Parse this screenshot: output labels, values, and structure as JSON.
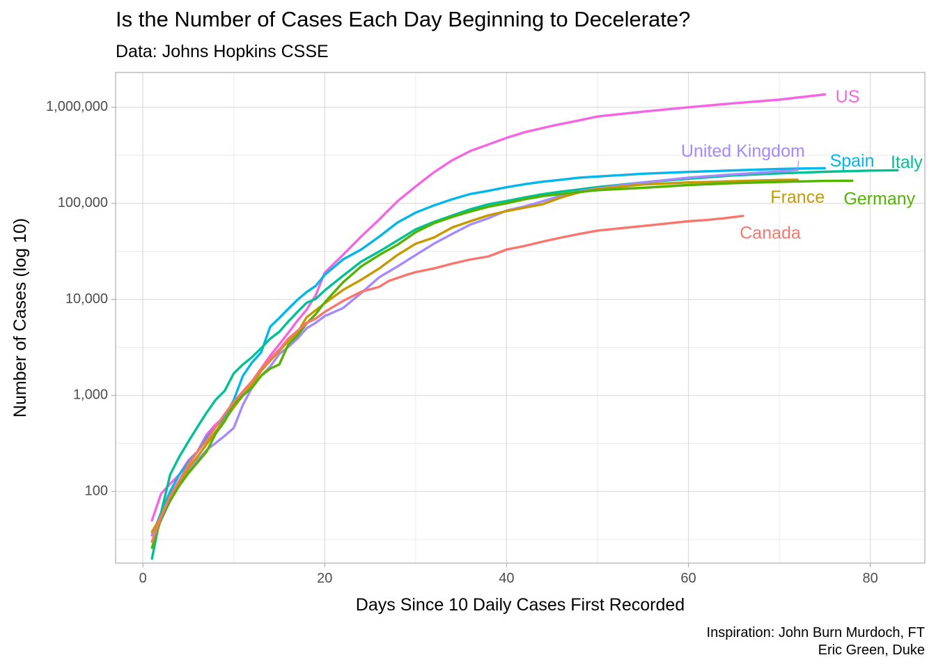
{
  "chart_data": {
    "type": "line",
    "title": "Is the Number of Cases Each Day Beginning to Decelerate?",
    "subtitle": "Data: Johns Hopkins CSSE",
    "xlabel": "Days Since 10 Daily Cases First Recorded",
    "ylabel": "Number of Cases (log 10)",
    "caption": [
      "Inspiration: John Burn Murdoch, FT",
      "Eric Green, Duke"
    ],
    "y_scale": "log10",
    "xlim": [
      -3,
      86
    ],
    "ylim": [
      18,
      2300000
    ],
    "x_ticks": [
      0,
      20,
      40,
      60,
      80
    ],
    "x_tick_labels": [
      "0",
      "20",
      "40",
      "60",
      "80"
    ],
    "y_ticks": [
      100,
      1000,
      10000,
      100000,
      1000000
    ],
    "y_tick_labels": [
      "100",
      "1,000",
      "10,000",
      "100,000",
      "1,000,000"
    ],
    "grid": true,
    "legend": "none (direct labels)",
    "series": [
      {
        "name": "US",
        "color": "#F564E3",
        "points": [
          [
            1,
            50
          ],
          [
            2,
            95
          ],
          [
            3,
            120
          ],
          [
            4,
            150
          ],
          [
            5,
            210
          ],
          [
            6,
            260
          ],
          [
            7,
            390
          ],
          [
            8,
            500
          ],
          [
            9,
            600
          ],
          [
            10,
            800
          ],
          [
            11,
            1100
          ],
          [
            12,
            1400
          ],
          [
            13,
            1900
          ],
          [
            14,
            2600
          ],
          [
            15,
            3400
          ],
          [
            16,
            4500
          ],
          [
            17,
            6000
          ],
          [
            18,
            7800
          ],
          [
            19,
            11000
          ],
          [
            20,
            19000
          ],
          [
            22,
            29000
          ],
          [
            24,
            45000
          ],
          [
            26,
            68000
          ],
          [
            28,
            105000
          ],
          [
            30,
            150000
          ],
          [
            32,
            210000
          ],
          [
            34,
            280000
          ],
          [
            36,
            350000
          ],
          [
            38,
            410000
          ],
          [
            40,
            480000
          ],
          [
            42,
            550000
          ],
          [
            45,
            640000
          ],
          [
            48,
            730000
          ],
          [
            50,
            800000
          ],
          [
            55,
            900000
          ],
          [
            60,
            1000000
          ],
          [
            65,
            1100000
          ],
          [
            70,
            1200000
          ],
          [
            75,
            1360000
          ]
        ],
        "label": {
          "text": "US",
          "x": 77.5,
          "y": 1250000
        }
      },
      {
        "name": "Spain",
        "color": "#00B6EB",
        "points": [
          [
            1,
            35
          ],
          [
            2,
            60
          ],
          [
            3,
            100
          ],
          [
            4,
            150
          ],
          [
            5,
            200
          ],
          [
            6,
            260
          ],
          [
            7,
            360
          ],
          [
            8,
            470
          ],
          [
            9,
            600
          ],
          [
            10,
            900
          ],
          [
            11,
            1600
          ],
          [
            12,
            2200
          ],
          [
            13,
            2800
          ],
          [
            14,
            5200
          ],
          [
            15,
            6400
          ],
          [
            16,
            8000
          ],
          [
            17,
            9900
          ],
          [
            18,
            11900
          ],
          [
            19,
            13800
          ],
          [
            20,
            18000
          ],
          [
            22,
            26000
          ],
          [
            24,
            33000
          ],
          [
            26,
            45000
          ],
          [
            28,
            63000
          ],
          [
            30,
            80000
          ],
          [
            32,
            95000
          ],
          [
            34,
            110000
          ],
          [
            36,
            125000
          ],
          [
            38,
            135000
          ],
          [
            40,
            147000
          ],
          [
            42,
            158000
          ],
          [
            44,
            168000
          ],
          [
            46,
            176000
          ],
          [
            48,
            185000
          ],
          [
            50,
            190000
          ],
          [
            55,
            203000
          ],
          [
            60,
            212000
          ],
          [
            65,
            220000
          ],
          [
            70,
            228000
          ],
          [
            75,
            232000
          ]
        ],
        "label": {
          "text": "Spain",
          "x": 78,
          "y": 270000
        }
      },
      {
        "name": "Italy",
        "color": "#00C094",
        "points": [
          [
            1,
            20
          ],
          [
            2,
            60
          ],
          [
            3,
            150
          ],
          [
            4,
            230
          ],
          [
            5,
            330
          ],
          [
            6,
            470
          ],
          [
            7,
            660
          ],
          [
            8,
            900
          ],
          [
            9,
            1120
          ],
          [
            10,
            1700
          ],
          [
            11,
            2100
          ],
          [
            12,
            2500
          ],
          [
            13,
            3100
          ],
          [
            14,
            3900
          ],
          [
            15,
            4600
          ],
          [
            16,
            5900
          ],
          [
            17,
            7400
          ],
          [
            18,
            9200
          ],
          [
            19,
            10100
          ],
          [
            20,
            12400
          ],
          [
            22,
            17600
          ],
          [
            24,
            24700
          ],
          [
            26,
            31500
          ],
          [
            28,
            41000
          ],
          [
            30,
            53600
          ],
          [
            32,
            63900
          ],
          [
            34,
            74400
          ],
          [
            36,
            86500
          ],
          [
            38,
            97700
          ],
          [
            40,
            105800
          ],
          [
            42,
            115200
          ],
          [
            44,
            124600
          ],
          [
            46,
            132500
          ],
          [
            48,
            139400
          ],
          [
            50,
            147600
          ],
          [
            55,
            165000
          ],
          [
            60,
            180000
          ],
          [
            65,
            195000
          ],
          [
            70,
            205000
          ],
          [
            75,
            213000
          ],
          [
            80,
            219000
          ],
          [
            83,
            221000
          ]
        ],
        "label": {
          "text": "Italy",
          "x": 84,
          "y": 260000
        }
      },
      {
        "name": "United Kingdom",
        "color": "#A58AFF",
        "points": [
          [
            1,
            35
          ],
          [
            2,
            50
          ],
          [
            3,
            80
          ],
          [
            4,
            115
          ],
          [
            5,
            160
          ],
          [
            6,
            210
          ],
          [
            7,
            270
          ],
          [
            8,
            320
          ],
          [
            9,
            380
          ],
          [
            10,
            460
          ],
          [
            11,
            800
          ],
          [
            12,
            1200
          ],
          [
            13,
            1600
          ],
          [
            14,
            2000
          ],
          [
            15,
            2700
          ],
          [
            16,
            3200
          ],
          [
            17,
            3900
          ],
          [
            18,
            5000
          ],
          [
            19,
            5700
          ],
          [
            20,
            6700
          ],
          [
            22,
            8100
          ],
          [
            24,
            11600
          ],
          [
            26,
            17000
          ],
          [
            28,
            22000
          ],
          [
            30,
            29000
          ],
          [
            32,
            38000
          ],
          [
            34,
            48000
          ],
          [
            36,
            60000
          ],
          [
            38,
            70000
          ],
          [
            40,
            84000
          ],
          [
            42,
            93000
          ],
          [
            44,
            105000
          ],
          [
            46,
            120000
          ],
          [
            48,
            133000
          ],
          [
            50,
            143000
          ],
          [
            55,
            165000
          ],
          [
            60,
            185000
          ],
          [
            65,
            200000
          ],
          [
            70,
            215000
          ],
          [
            72,
            223000
          ]
        ],
        "label": {
          "text": "United Kingdom",
          "x": 66,
          "y": 340000
        }
      },
      {
        "name": "France",
        "color": "#C49A00",
        "points": [
          [
            1,
            38
          ],
          [
            2,
            55
          ],
          [
            3,
            90
          ],
          [
            4,
            120
          ],
          [
            5,
            175
          ],
          [
            6,
            230
          ],
          [
            7,
            310
          ],
          [
            8,
            420
          ],
          [
            9,
            560
          ],
          [
            10,
            750
          ],
          [
            11,
            1000
          ],
          [
            12,
            1300
          ],
          [
            13,
            1800
          ],
          [
            14,
            2300
          ],
          [
            15,
            2900
          ],
          [
            16,
            3700
          ],
          [
            17,
            4500
          ],
          [
            18,
            6500
          ],
          [
            19,
            7700
          ],
          [
            20,
            9100
          ],
          [
            22,
            12500
          ],
          [
            24,
            16000
          ],
          [
            26,
            21000
          ],
          [
            28,
            29000
          ],
          [
            30,
            38000
          ],
          [
            32,
            44000
          ],
          [
            34,
            56000
          ],
          [
            36,
            65000
          ],
          [
            38,
            75000
          ],
          [
            40,
            83000
          ],
          [
            42,
            90000
          ],
          [
            44,
            98000
          ],
          [
            46,
            115000
          ],
          [
            48,
            130000
          ],
          [
            50,
            141000
          ],
          [
            55,
            157000
          ],
          [
            60,
            165000
          ],
          [
            65,
            170000
          ],
          [
            70,
            175000
          ],
          [
            72,
            176000
          ]
        ],
        "label": {
          "text": "France",
          "x": 72,
          "y": 113000
        }
      },
      {
        "name": "Germany",
        "color": "#53B400",
        "points": [
          [
            1,
            26
          ],
          [
            2,
            52
          ],
          [
            3,
            80
          ],
          [
            4,
            115
          ],
          [
            5,
            155
          ],
          [
            6,
            200
          ],
          [
            7,
            260
          ],
          [
            8,
            400
          ],
          [
            9,
            540
          ],
          [
            10,
            800
          ],
          [
            11,
            1000
          ],
          [
            12,
            1200
          ],
          [
            13,
            1600
          ],
          [
            14,
            1900
          ],
          [
            15,
            2100
          ],
          [
            16,
            3400
          ],
          [
            17,
            4200
          ],
          [
            18,
            5600
          ],
          [
            19,
            7000
          ],
          [
            20,
            9300
          ],
          [
            22,
            15000
          ],
          [
            24,
            22000
          ],
          [
            26,
            29000
          ],
          [
            28,
            37000
          ],
          [
            30,
            50000
          ],
          [
            32,
            62000
          ],
          [
            34,
            72000
          ],
          [
            36,
            82000
          ],
          [
            38,
            92000
          ],
          [
            40,
            100000
          ],
          [
            42,
            110000
          ],
          [
            44,
            119000
          ],
          [
            46,
            125000
          ],
          [
            48,
            131000
          ],
          [
            50,
            137000
          ],
          [
            55,
            145000
          ],
          [
            60,
            155000
          ],
          [
            65,
            162000
          ],
          [
            70,
            167000
          ],
          [
            75,
            171000
          ],
          [
            78,
            172000
          ]
        ],
        "label": {
          "text": "Germany",
          "x": 81,
          "y": 108000
        }
      },
      {
        "name": "Canada",
        "color": "#F8766D",
        "points": [
          [
            1,
            30
          ],
          [
            2,
            55
          ],
          [
            3,
            90
          ],
          [
            4,
            130
          ],
          [
            5,
            190
          ],
          [
            6,
            260
          ],
          [
            7,
            340
          ],
          [
            8,
            470
          ],
          [
            9,
            640
          ],
          [
            10,
            860
          ],
          [
            11,
            1100
          ],
          [
            12,
            1400
          ],
          [
            13,
            1900
          ],
          [
            14,
            2400
          ],
          [
            15,
            3000
          ],
          [
            16,
            3900
          ],
          [
            17,
            4700
          ],
          [
            18,
            5700
          ],
          [
            19,
            6300
          ],
          [
            20,
            7400
          ],
          [
            22,
            9600
          ],
          [
            24,
            12000
          ],
          [
            26,
            13500
          ],
          [
            27,
            15500
          ],
          [
            29,
            18000
          ],
          [
            30,
            19200
          ],
          [
            32,
            21000
          ],
          [
            34,
            23500
          ],
          [
            36,
            26000
          ],
          [
            38,
            28000
          ],
          [
            40,
            33000
          ],
          [
            42,
            36000
          ],
          [
            44,
            40000
          ],
          [
            46,
            44000
          ],
          [
            48,
            48000
          ],
          [
            50,
            52000
          ],
          [
            55,
            58000
          ],
          [
            60,
            65000
          ],
          [
            62,
            67000
          ],
          [
            64,
            70000
          ],
          [
            66,
            74000
          ]
        ],
        "label": {
          "text": "Canada",
          "x": 69,
          "y": 48000
        }
      }
    ]
  }
}
